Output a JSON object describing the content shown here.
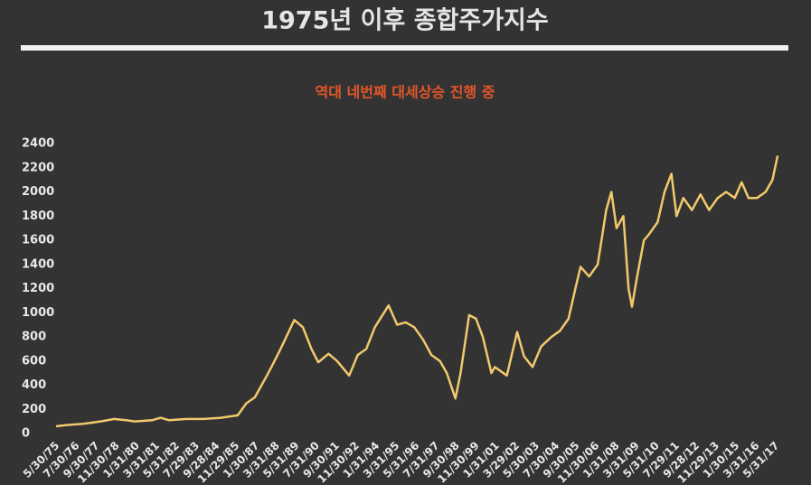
{
  "chart_data": {
    "type": "line",
    "title": "1975년 이후 종합주가지수",
    "subtitle": "역대 네번째 대세상승 진행 중",
    "series": [
      {
        "color": "#f2c96b",
        "x": [
          1975.4,
          1976,
          1977,
          1978,
          1978.8,
          1979.5,
          1980,
          1981,
          1981.5,
          1982,
          1983,
          1984,
          1985,
          1986,
          1986.5,
          1987,
          1987.7,
          1988,
          1988.5,
          1989.3,
          1989.8,
          1990.3,
          1990.7,
          1991.3,
          1991.8,
          1992.5,
          1993,
          1993.5,
          1994,
          1994.8,
          1995.3,
          1995.8,
          1996.3,
          1996.8,
          1997.3,
          1997.8,
          1998.2,
          1998.7,
          1999,
          1999.5,
          1999.9,
          2000.3,
          2000.8,
          2001,
          2001.7,
          2002.3,
          2002.7,
          2003.2,
          2003.7,
          2004.3,
          2004.8,
          2005.3,
          2005.7,
          2006,
          2006.5,
          2007,
          2007.5,
          2007.8,
          2008.1,
          2008.5,
          2008.8,
          2009,
          2009.3,
          2009.7,
          2010,
          2010.5,
          2010.9,
          2011.3,
          2011.6,
          2012,
          2012.5,
          2013,
          2013.5,
          2014,
          2014.5,
          2015,
          2015.4,
          2015.8,
          2016.3,
          2016.8,
          2017.2,
          2017.5
        ],
        "values": [
          60,
          70,
          80,
          100,
          120,
          110,
          100,
          110,
          130,
          110,
          120,
          120,
          130,
          150,
          250,
          300,
          480,
          560,
          700,
          940,
          880,
          700,
          590,
          660,
          600,
          480,
          650,
          700,
          880,
          1060,
          900,
          920,
          880,
          780,
          650,
          600,
          500,
          290,
          500,
          980,
          950,
          800,
          500,
          550,
          480,
          840,
          640,
          550,
          720,
          800,
          850,
          950,
          1200,
          1380,
          1300,
          1400,
          1850,
          2000,
          1700,
          1800,
          1200,
          1050,
          1300,
          1600,
          1650,
          1750,
          2000,
          2150,
          1800,
          1950,
          1850,
          1980,
          1850,
          1950,
          2000,
          1950,
          2080,
          1950,
          1950,
          2000,
          2100,
          2300
        ]
      }
    ],
    "xlim": [
      1975.4,
      2017.6
    ],
    "xticks": [
      {
        "value": 1975.41,
        "label": "5/30/75"
      },
      {
        "value": 1976.58,
        "label": "7/30/76"
      },
      {
        "value": 1977.75,
        "label": "9/30/77"
      },
      {
        "value": 1978.91,
        "label": "11/30/78"
      },
      {
        "value": 1980.08,
        "label": "1/31/80"
      },
      {
        "value": 1981.25,
        "label": "3/31/81"
      },
      {
        "value": 1982.41,
        "label": "5/31/82"
      },
      {
        "value": 1983.58,
        "label": "7/29/83"
      },
      {
        "value": 1984.75,
        "label": "9/28/84"
      },
      {
        "value": 1985.91,
        "label": "11/29/85"
      },
      {
        "value": 1987.08,
        "label": "1/30/87"
      },
      {
        "value": 1988.25,
        "label": "3/31/88"
      },
      {
        "value": 1989.41,
        "label": "5/31/89"
      },
      {
        "value": 1990.58,
        "label": "7/31/90"
      },
      {
        "value": 1991.75,
        "label": "9/30/91"
      },
      {
        "value": 1992.91,
        "label": "11/30/92"
      },
      {
        "value": 1994.08,
        "label": "1/31/94"
      },
      {
        "value": 1995.25,
        "label": "3/31/95"
      },
      {
        "value": 1996.41,
        "label": "5/31/96"
      },
      {
        "value": 1997.58,
        "label": "7/31/97"
      },
      {
        "value": 1998.75,
        "label": "9/30/98"
      },
      {
        "value": 1999.91,
        "label": "11/30/99"
      },
      {
        "value": 2001.08,
        "label": "1/31/01"
      },
      {
        "value": 2002.25,
        "label": "3/29/02"
      },
      {
        "value": 2003.41,
        "label": "5/30/03"
      },
      {
        "value": 2004.58,
        "label": "7/30/04"
      },
      {
        "value": 2005.75,
        "label": "9/30/05"
      },
      {
        "value": 2006.91,
        "label": "11/30/06"
      },
      {
        "value": 2008.08,
        "label": "1/31/08"
      },
      {
        "value": 2009.25,
        "label": "3/31/09"
      },
      {
        "value": 2010.41,
        "label": "5/31/10"
      },
      {
        "value": 2011.58,
        "label": "7/29/11"
      },
      {
        "value": 2012.75,
        "label": "9/28/12"
      },
      {
        "value": 2013.91,
        "label": "11/29/13"
      },
      {
        "value": 2015.08,
        "label": "1/30/15"
      },
      {
        "value": 2016.25,
        "label": "3/31/16"
      },
      {
        "value": 2017.41,
        "label": "5/31/17"
      }
    ],
    "ylim": [
      0,
      2400
    ],
    "yticks": [
      0,
      200,
      400,
      600,
      800,
      1000,
      1200,
      1400,
      1600,
      1800,
      2000,
      2200,
      2400
    ]
  }
}
